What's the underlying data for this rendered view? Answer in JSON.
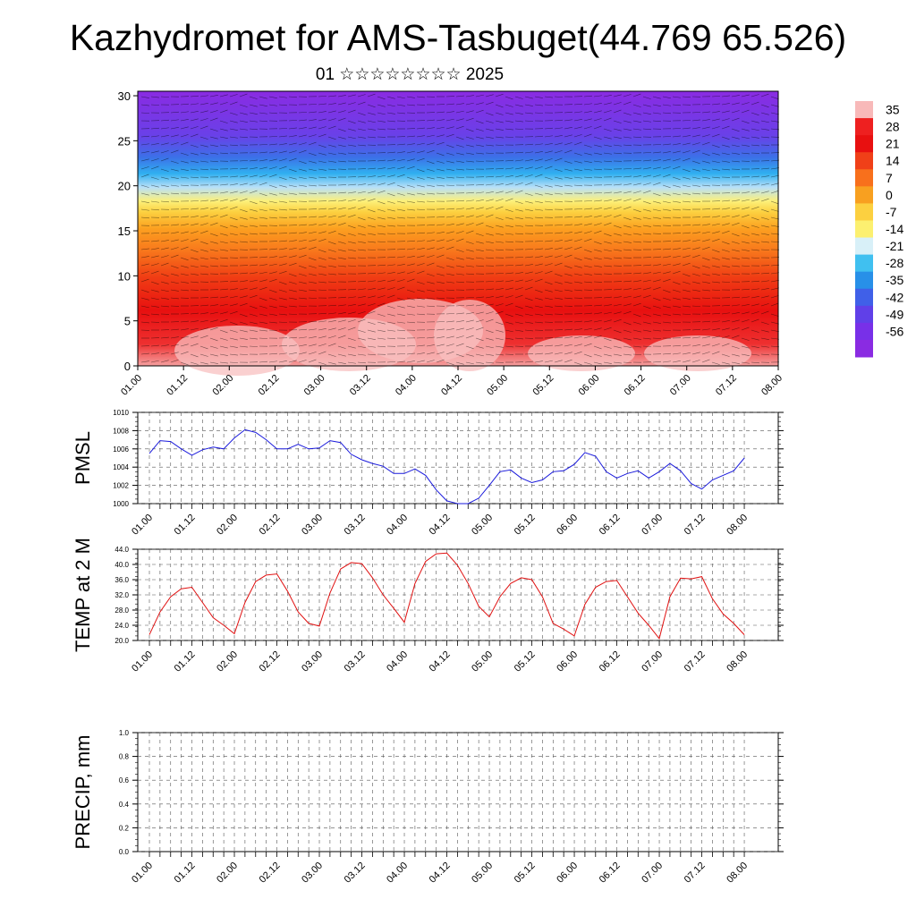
{
  "title": "Kazhydromet for AMS-Tasbuget(44.769 65.526)",
  "subtitle": "01 ☆☆☆☆☆☆☆☆ 2025",
  "chart_data": [
    {
      "type": "heatmap",
      "name": "cross-section",
      "x_ticks": [
        "01.00",
        "01.12",
        "02.00",
        "02.12",
        "03.00",
        "03.12",
        "04.00",
        "04.12",
        "05.00",
        "05.12",
        "06.00",
        "06.12",
        "07.00",
        "07.12",
        "08.00"
      ],
      "y_ticks": [
        "0",
        "5",
        "10",
        "15",
        "20",
        "25",
        "30"
      ],
      "ylim": [
        0,
        30.5
      ],
      "colorbar": {
        "labels": [
          "35",
          "28",
          "21",
          "14",
          "7",
          "0",
          "-7",
          "-14",
          "-21",
          "-28",
          "-35",
          "-42",
          "-49",
          "-56"
        ],
        "colors": [
          "#f8b9b9",
          "#ee2020",
          "#e81010",
          "#f04018",
          "#f8701c",
          "#f8a020",
          "#fcd040",
          "#fcf070",
          "#d8f0f8",
          "#40c0f0",
          "#2890e8",
          "#4060e8",
          "#6040e8",
          "#7830e8",
          "#8a2be2"
        ]
      },
      "field_description": "Temperature by altitude; warm near surface, cold aloft, with wind barbs"
    },
    {
      "type": "line",
      "ylabel": "PMSL",
      "ylim": [
        1000,
        1010
      ],
      "y_ticks": [
        "1000",
        "1002",
        "1004",
        "1006",
        "1008",
        "1010"
      ],
      "x_ticks": [
        "01.00",
        "01.12",
        "02.00",
        "02.12",
        "03.00",
        "03.12",
        "04.00",
        "04.12",
        "05.00",
        "05.12",
        "06.00",
        "06.12",
        "07.00",
        "07.12",
        "08.00"
      ],
      "color": "#1a1adc",
      "values": [
        1005.5,
        1006.9,
        1006.8,
        1006.0,
        1005.3,
        1005.9,
        1006.2,
        1006.0,
        1007.2,
        1008.1,
        1007.8,
        1007.0,
        1006.0,
        1006.0,
        1006.5,
        1006.0,
        1006.1,
        1006.9,
        1006.7,
        1005.4,
        1004.8,
        1004.4,
        1004.1,
        1003.3,
        1003.3,
        1003.8,
        1003.1,
        1001.5,
        1000.3,
        1000.0,
        1000.0,
        1000.6,
        1002.0,
        1003.5,
        1003.7,
        1002.8,
        1002.3,
        1002.6,
        1003.5,
        1003.6,
        1004.3,
        1005.6,
        1005.2,
        1003.5,
        1002.8,
        1003.3,
        1003.6,
        1002.8,
        1003.5,
        1004.4,
        1003.6,
        1002.2,
        1001.6,
        1002.6,
        1003.1,
        1003.6,
        1005.0
      ],
      "x_step_hours": 3
    },
    {
      "type": "line",
      "ylabel": "TEMP at 2 M",
      "ylim": [
        20,
        44
      ],
      "y_ticks": [
        "20.0",
        "24.0",
        "28.0",
        "32.0",
        "36.0",
        "40.0",
        "44.0"
      ],
      "x_ticks": [
        "01.00",
        "01.12",
        "02.00",
        "02.12",
        "03.00",
        "03.12",
        "04.00",
        "04.12",
        "05.00",
        "05.12",
        "06.00",
        "06.12",
        "07.00",
        "07.12",
        "08.00"
      ],
      "color": "#e01010",
      "values": [
        21.5,
        27.5,
        31.5,
        33.6,
        34.0,
        30.0,
        26.0,
        24.0,
        21.8,
        30.0,
        35.5,
        37.2,
        37.5,
        33.0,
        27.5,
        24.5,
        23.8,
        32.5,
        38.8,
        40.5,
        40.2,
        36.5,
        32.0,
        28.5,
        24.8,
        35.0,
        40.8,
        42.8,
        43.0,
        39.8,
        35.0,
        29.0,
        26.2,
        31.5,
        35.0,
        36.5,
        36.0,
        31.5,
        24.5,
        23.0,
        21.2,
        29.5,
        34.0,
        35.5,
        35.8,
        31.5,
        27.2,
        24.0,
        20.5,
        31.5,
        36.4,
        36.2,
        36.8,
        31.0,
        27.0,
        24.5,
        21.5
      ],
      "x_step_hours": 3
    },
    {
      "type": "line",
      "ylabel": "PRECIP, mm",
      "ylim": [
        0,
        1
      ],
      "y_ticks": [
        "0.0",
        "0.2",
        "0.4",
        "0.6",
        "0.8",
        "1.0"
      ],
      "x_ticks": [
        "01.00",
        "01.12",
        "02.00",
        "02.12",
        "03.00",
        "03.12",
        "04.00",
        "04.12",
        "05.00",
        "05.12",
        "06.00",
        "06.12",
        "07.00",
        "07.12",
        "08.00"
      ],
      "color": "#000000",
      "values": [
        0,
        0,
        0,
        0,
        0,
        0,
        0,
        0,
        0,
        0,
        0,
        0,
        0,
        0,
        0,
        0,
        0,
        0,
        0,
        0,
        0,
        0,
        0,
        0,
        0,
        0,
        0,
        0,
        0,
        0,
        0,
        0,
        0,
        0,
        0,
        0,
        0,
        0,
        0,
        0,
        0,
        0,
        0,
        0,
        0,
        0,
        0,
        0,
        0,
        0,
        0,
        0,
        0,
        0,
        0,
        0,
        0
      ],
      "x_step_hours": 3
    }
  ]
}
